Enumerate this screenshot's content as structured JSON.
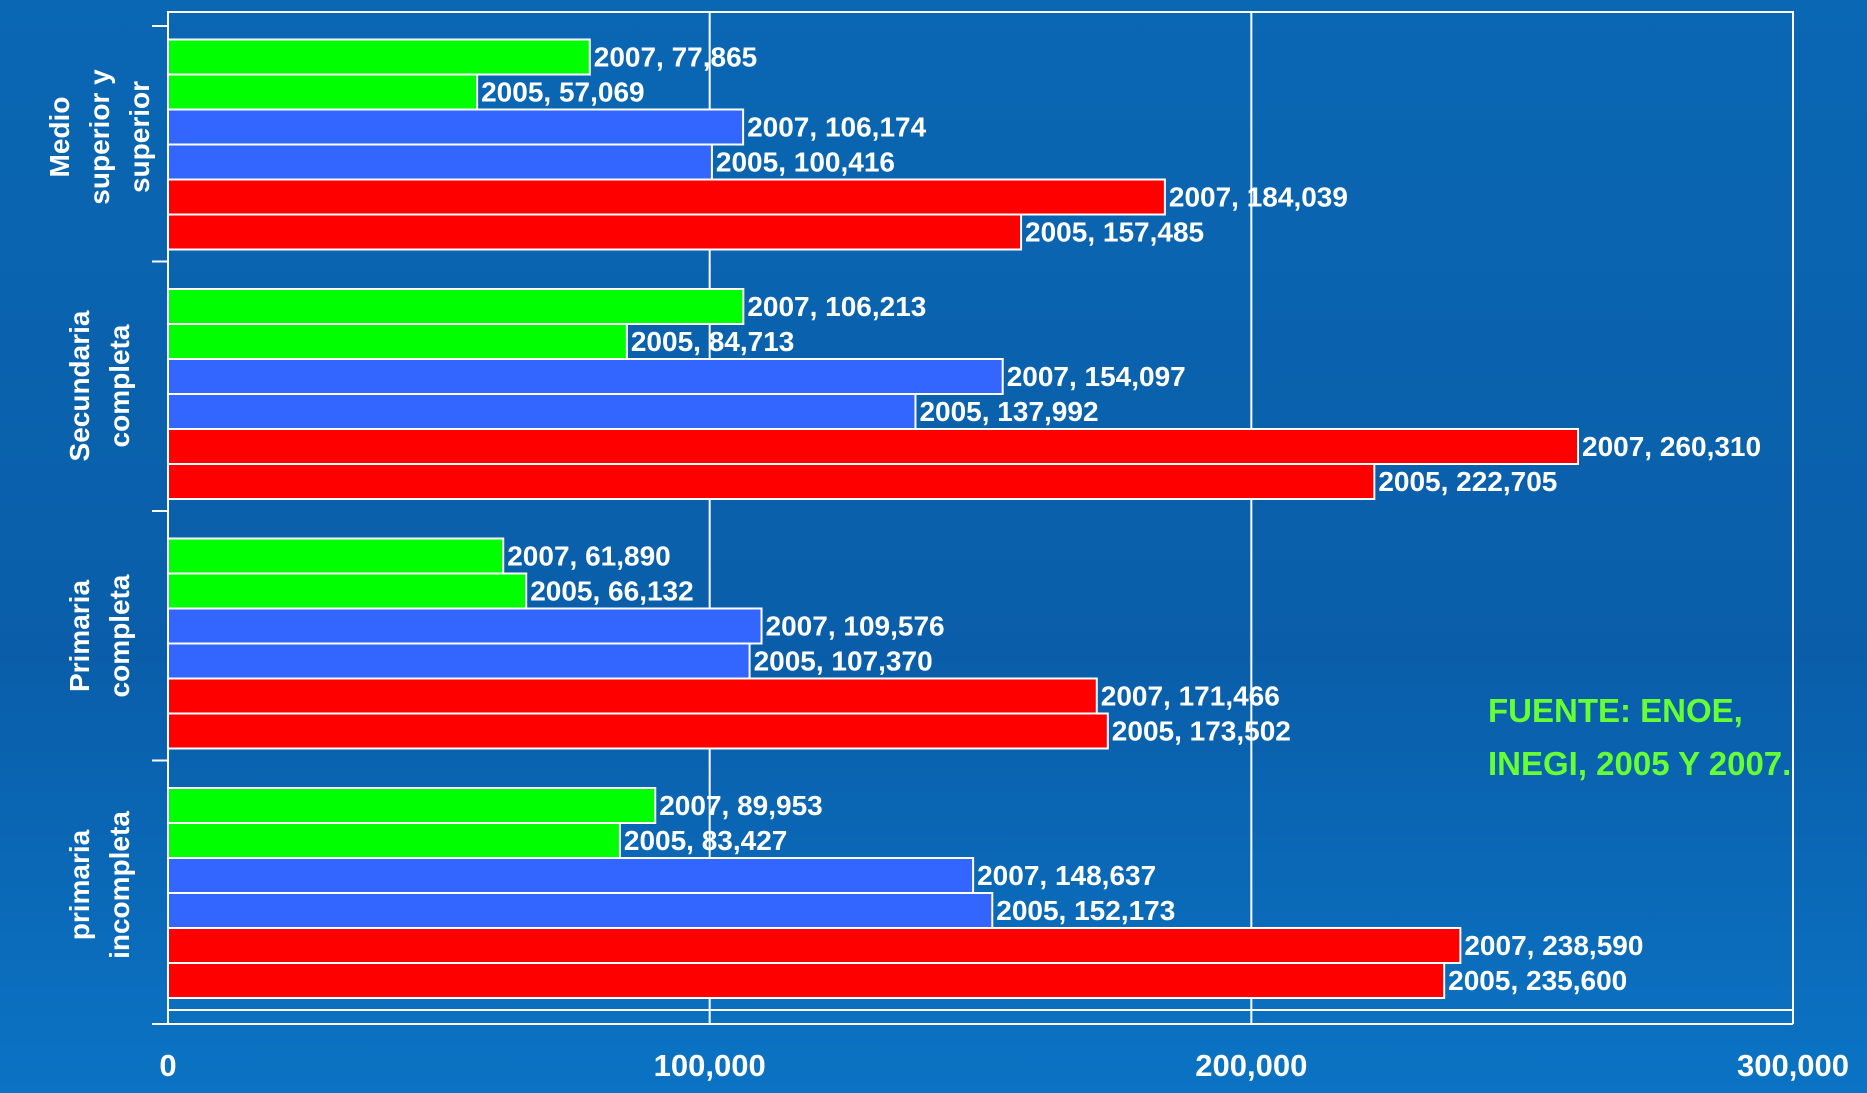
{
  "chart_data": {
    "type": "bar",
    "orientation": "horizontal",
    "categories": [
      "primaria\nincompleta",
      "Primaria\ncompleta",
      "Secundaria\ncompleta",
      "Medio\nsuperior y\nsuperior"
    ],
    "series": [
      {
        "color": "#ff0000",
        "values": [
          235600,
          173502,
          222705,
          157485
        ],
        "value_labels": [
          "2005, 235,600",
          "2005, 173,502",
          "2005, 222,705",
          "2005, 157,485"
        ]
      },
      {
        "color": "#ff0000",
        "values": [
          238590,
          171466,
          260310,
          184039
        ],
        "value_labels": [
          "2007, 238,590",
          "2007, 171,466",
          "2007, 260,310",
          "2007, 184,039"
        ]
      },
      {
        "color": "#3366ff",
        "values": [
          152173,
          107370,
          137992,
          100416
        ],
        "value_labels": [
          "2005, 152,173",
          "2005, 107,370",
          "2005, 137,992",
          "2005, 100,416"
        ]
      },
      {
        "color": "#3366ff",
        "values": [
          148637,
          109576,
          154097,
          106174
        ],
        "value_labels": [
          "2007, 148,637",
          "2007, 109,576",
          "2007, 154,097",
          "2007, 106,174"
        ]
      },
      {
        "color": "#00ff00",
        "values": [
          83427,
          66132,
          84713,
          57069
        ],
        "value_labels": [
          "2005, 83,427",
          "2005, 66,132",
          "2005, 84,713",
          "2005, 57,069"
        ]
      },
      {
        "color": "#00ff00",
        "values": [
          89953,
          61890,
          106213,
          77865
        ],
        "value_labels": [
          "2007, 89,953",
          "2007, 61,890",
          "2007, 106,213",
          "2007, 77,865"
        ]
      }
    ],
    "xlim": [
      0,
      300000
    ],
    "xticks": [
      0,
      {
        "value": 100000,
        "label": "100,000"
      },
      {
        "value": 200000,
        "label": "200,000"
      },
      {
        "value": 300000,
        "label": "300,000"
      }
    ],
    "grid": true,
    "annotation": "FUENTE: ENOE,\nINEGI, 2005 Y 2007."
  }
}
